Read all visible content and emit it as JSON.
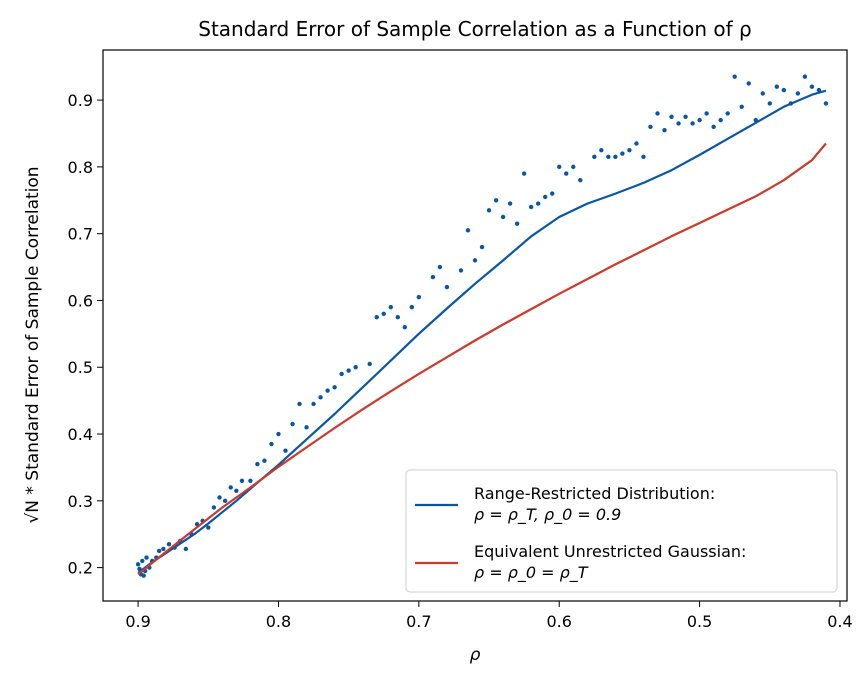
{
  "chart_data": {
    "type": "line",
    "title": "Standard Error of Sample Correlation as a Function of ρ",
    "xlabel": "ρ",
    "ylabel": "√N * Standard Error of Sample Correlation",
    "xlim": [
      0.925,
      0.395
    ],
    "ylim": [
      0.15,
      0.975
    ],
    "x_reversed": true,
    "grid": false,
    "legend_position": "lower-right",
    "x_ticks": [
      0.9,
      0.8,
      0.7,
      0.6,
      0.5,
      0.4
    ],
    "x_tick_labels": [
      "0.9",
      "0.8",
      "0.7",
      "0.6",
      "0.5",
      "0.4"
    ],
    "y_ticks": [
      0.2,
      0.3,
      0.4,
      0.5,
      0.6,
      0.7,
      0.8,
      0.9
    ],
    "y_tick_labels": [
      "0.2",
      "0.3",
      "0.4",
      "0.5",
      "0.6",
      "0.7",
      "0.8",
      "0.9"
    ],
    "series": [
      {
        "kind": "line",
        "color": "#0a56a6",
        "legend_line1": "Range-Restricted Distribution:",
        "legend_line2": "ρ = ρ_T, ρ_0 = 0.9",
        "x": [
          0.9,
          0.89,
          0.88,
          0.87,
          0.86,
          0.85,
          0.84,
          0.83,
          0.82,
          0.81,
          0.8,
          0.78,
          0.76,
          0.74,
          0.72,
          0.7,
          0.68,
          0.66,
          0.64,
          0.62,
          0.6,
          0.58,
          0.56,
          0.54,
          0.52,
          0.5,
          0.48,
          0.46,
          0.44,
          0.42,
          0.41
        ],
        "y": [
          0.192,
          0.208,
          0.222,
          0.236,
          0.25,
          0.266,
          0.283,
          0.3,
          0.318,
          0.336,
          0.354,
          0.392,
          0.43,
          0.47,
          0.51,
          0.55,
          0.588,
          0.625,
          0.66,
          0.696,
          0.725,
          0.745,
          0.76,
          0.776,
          0.795,
          0.818,
          0.842,
          0.866,
          0.89,
          0.908,
          0.914
        ]
      },
      {
        "kind": "line",
        "color": "#cc3a2b",
        "legend_line1": "Equivalent Unrestricted Gaussian:",
        "legend_line2": "ρ = ρ_0 = ρ_T",
        "x": [
          0.9,
          0.88,
          0.86,
          0.84,
          0.82,
          0.8,
          0.78,
          0.76,
          0.74,
          0.72,
          0.7,
          0.68,
          0.66,
          0.64,
          0.62,
          0.6,
          0.58,
          0.56,
          0.54,
          0.52,
          0.5,
          0.48,
          0.46,
          0.44,
          0.42,
          0.41
        ],
        "y": [
          0.19,
          0.224,
          0.257,
          0.29,
          0.32,
          0.351,
          0.38,
          0.409,
          0.437,
          0.464,
          0.49,
          0.515,
          0.54,
          0.564,
          0.587,
          0.61,
          0.632,
          0.654,
          0.675,
          0.696,
          0.716,
          0.736,
          0.756,
          0.78,
          0.81,
          0.835
        ]
      },
      {
        "kind": "scatter",
        "color": "#0a56a6",
        "x": [
          0.9,
          0.899,
          0.898,
          0.897,
          0.896,
          0.895,
          0.894,
          0.892,
          0.89,
          0.887,
          0.885,
          0.882,
          0.878,
          0.874,
          0.87,
          0.866,
          0.862,
          0.858,
          0.854,
          0.85,
          0.846,
          0.842,
          0.838,
          0.834,
          0.83,
          0.826,
          0.82,
          0.815,
          0.81,
          0.805,
          0.8,
          0.795,
          0.79,
          0.785,
          0.78,
          0.775,
          0.77,
          0.765,
          0.76,
          0.755,
          0.75,
          0.745,
          0.735,
          0.73,
          0.725,
          0.72,
          0.715,
          0.71,
          0.705,
          0.7,
          0.69,
          0.685,
          0.68,
          0.67,
          0.665,
          0.66,
          0.655,
          0.65,
          0.645,
          0.64,
          0.635,
          0.63,
          0.625,
          0.62,
          0.615,
          0.61,
          0.605,
          0.6,
          0.595,
          0.59,
          0.585,
          0.575,
          0.57,
          0.565,
          0.56,
          0.555,
          0.55,
          0.545,
          0.54,
          0.535,
          0.53,
          0.525,
          0.52,
          0.515,
          0.51,
          0.505,
          0.5,
          0.495,
          0.49,
          0.485,
          0.48,
          0.475,
          0.47,
          0.465,
          0.46,
          0.455,
          0.45,
          0.445,
          0.44,
          0.435,
          0.43,
          0.425,
          0.42,
          0.415,
          0.41
        ],
        "y": [
          0.205,
          0.198,
          0.19,
          0.21,
          0.188,
          0.195,
          0.215,
          0.2,
          0.21,
          0.215,
          0.225,
          0.228,
          0.235,
          0.23,
          0.24,
          0.228,
          0.25,
          0.265,
          0.27,
          0.26,
          0.29,
          0.305,
          0.3,
          0.32,
          0.315,
          0.33,
          0.33,
          0.355,
          0.36,
          0.385,
          0.4,
          0.375,
          0.415,
          0.445,
          0.41,
          0.445,
          0.455,
          0.465,
          0.47,
          0.49,
          0.495,
          0.5,
          0.505,
          0.575,
          0.58,
          0.59,
          0.575,
          0.56,
          0.59,
          0.605,
          0.635,
          0.65,
          0.62,
          0.645,
          0.705,
          0.66,
          0.68,
          0.735,
          0.75,
          0.725,
          0.745,
          0.715,
          0.79,
          0.74,
          0.745,
          0.755,
          0.76,
          0.8,
          0.79,
          0.8,
          0.78,
          0.815,
          0.825,
          0.815,
          0.815,
          0.82,
          0.825,
          0.835,
          0.815,
          0.86,
          0.88,
          0.855,
          0.875,
          0.865,
          0.875,
          0.865,
          0.87,
          0.88,
          0.86,
          0.87,
          0.88,
          0.935,
          0.89,
          0.925,
          0.87,
          0.91,
          0.895,
          0.92,
          0.915,
          0.895,
          0.91,
          0.935,
          0.92,
          0.915,
          0.895
        ]
      }
    ]
  }
}
